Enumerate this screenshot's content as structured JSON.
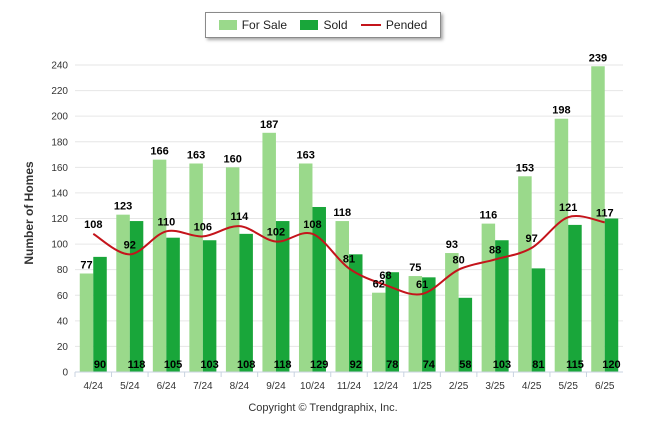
{
  "chart_data": {
    "type": "bar",
    "ylabel": "Number of Homes",
    "ylim": [
      0,
      240
    ],
    "yticks": [
      0,
      20,
      40,
      60,
      80,
      100,
      120,
      140,
      160,
      180,
      200,
      220,
      240
    ],
    "grid": true,
    "legend_position": "top-center",
    "categories": [
      "4/24",
      "5/24",
      "6/24",
      "7/24",
      "8/24",
      "9/24",
      "10/24",
      "11/24",
      "12/24",
      "1/25",
      "2/25",
      "3/25",
      "4/25",
      "5/25",
      "6/25"
    ],
    "series": [
      {
        "name": "For Sale",
        "kind": "bar",
        "color": "#9ad98b",
        "values": [
          77,
          123,
          166,
          163,
          160,
          187,
          163,
          118,
          62,
          75,
          93,
          116,
          153,
          198,
          239
        ]
      },
      {
        "name": "Sold",
        "kind": "bar",
        "color": "#19a63a",
        "values": [
          90,
          118,
          105,
          103,
          108,
          118,
          129,
          92,
          78,
          74,
          58,
          103,
          81,
          115,
          120
        ]
      },
      {
        "name": "Pended",
        "kind": "line",
        "color": "#c4141b",
        "values": [
          108,
          92,
          110,
          106,
          114,
          102,
          108,
          81,
          68,
          61,
          80,
          88,
          97,
          121,
          117
        ]
      }
    ]
  },
  "copyright": "Copyright © Trendgraphix, Inc."
}
